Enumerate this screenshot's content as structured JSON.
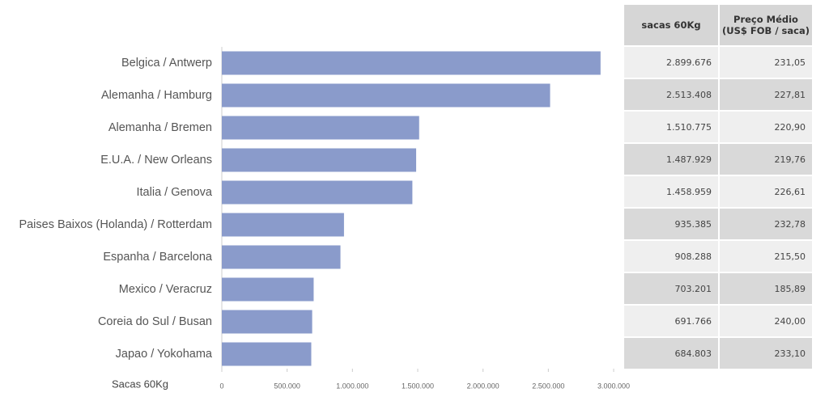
{
  "chart_data": {
    "type": "bar",
    "orientation": "horizontal",
    "categories": [
      "Belgica / Antwerp",
      "Alemanha / Hamburg",
      "Alemanha / Bremen",
      "E.U.A. / New Orleans",
      "Italia / Genova",
      "Paises Baixos (Holanda) / Rotterdam",
      "Espanha / Barcelona",
      "Mexico / Veracruz",
      "Coreia do Sul / Busan",
      "Japao / Yokohama"
    ],
    "values": [
      2899676,
      2513408,
      1510775,
      1487929,
      1458959,
      935385,
      908288,
      703201,
      691766,
      684803
    ],
    "color": "#8a9bcb",
    "xlabel": "Sacas 60Kg",
    "xlim": [
      0,
      3000000
    ],
    "xticks": [
      0,
      {
        "value": 500000,
        "label": "500.000"
      },
      {
        "value": 1000000,
        "label": "1.000.000"
      },
      {
        "value": 1500000,
        "label": "1.500.000"
      },
      {
        "value": 2000000,
        "label": "2.000.000"
      },
      {
        "value": 2500000,
        "label": "2.500.000"
      },
      {
        "value": 3000000,
        "label": "3.000.000"
      }
    ],
    "grid": false
  },
  "table": {
    "headers": [
      [
        "sacas 60Kg"
      ],
      [
        "Preço Médio",
        "(US$ FOB / saca)"
      ]
    ],
    "rows": [
      [
        "2.899.676",
        "231,05"
      ],
      [
        "2.513.408",
        "227,81"
      ],
      [
        "1.510.775",
        "220,90"
      ],
      [
        "1.487.929",
        "219,76"
      ],
      [
        "1.458.959",
        "226,61"
      ],
      [
        "935.385",
        "232,78"
      ],
      [
        "908.288",
        "215,50"
      ],
      [
        "703.201",
        "185,89"
      ],
      [
        "691.766",
        "240,00"
      ],
      [
        "684.803",
        "233,10"
      ]
    ]
  }
}
